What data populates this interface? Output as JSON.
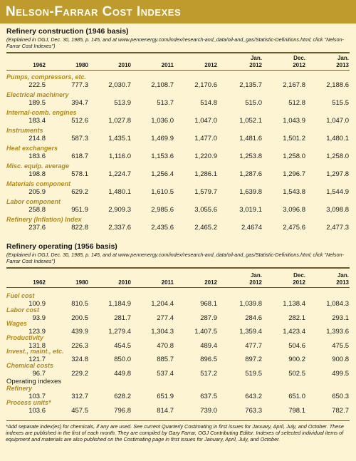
{
  "title": "Nelson-Farrar Cost Indexes",
  "construction": {
    "heading": "Refinery construction (1946 basis)",
    "note": "(Explained in OGJ, Dec. 30, 1985, p. 145, and at www.pennenergy.com/index/research-and_data/oil-and_gas/Statistic-Definitions.html; click \"Nelson-Farrar Cost Indexes\")",
    "columns": [
      {
        "l1": "",
        "l2": "1962"
      },
      {
        "l1": "",
        "l2": "1980"
      },
      {
        "l1": "",
        "l2": "2010"
      },
      {
        "l1": "",
        "l2": "2011"
      },
      {
        "l1": "",
        "l2": "2012"
      },
      {
        "l1": "Jan.",
        "l2": "2012"
      },
      {
        "l1": "Dec.",
        "l2": "2012"
      },
      {
        "l1": "Jan.",
        "l2": "2013"
      }
    ],
    "rows": [
      {
        "label": "Pumps, compressors, etc.",
        "values": [
          "222.5",
          "777.3",
          "2,030.7",
          "2,108.7",
          "2,170.6",
          "2,135.7",
          "2,167.8",
          "2,188.6"
        ]
      },
      {
        "label": "Electrical machinery",
        "values": [
          "189.5",
          "394.7",
          "513.9",
          "513.7",
          "514.8",
          "515.0",
          "512.8",
          "515.5"
        ]
      },
      {
        "label": "Internal-comb. engines",
        "values": [
          "183.4",
          "512.6",
          "1,027.8",
          "1,036.0",
          "1,047.0",
          "1,052.1",
          "1,043.9",
          "1,047.0"
        ]
      },
      {
        "label": "Instruments",
        "values": [
          "214.8",
          "587.3",
          "1,435.1",
          "1,469.9",
          "1,477.0",
          "1,481.6",
          "1,501.2",
          "1,480.1"
        ]
      },
      {
        "label": "Heat exchangers",
        "values": [
          "183.6",
          "618.7",
          "1,116.0",
          "1,153.6",
          "1,220.9",
          "1,253.8",
          "1,258.0",
          "1,258.0"
        ]
      },
      {
        "label": "Misc. equip. average",
        "values": [
          "198.8",
          "578.1",
          "1,224.7",
          "1,256.4",
          "1,286.1",
          "1,287.6",
          "1,296.7",
          "1,297.8"
        ]
      },
      {
        "label": "Materials component",
        "values": [
          "205.9",
          "629.2",
          "1,480.1",
          "1,610.5",
          "1,579.7",
          "1,639.8",
          "1,543.8",
          "1,544.9"
        ]
      },
      {
        "label": "Labor component",
        "values": [
          "258.8",
          "951.9",
          "2,909.3",
          "2,985.6",
          "3,055.6",
          "3,019.1",
          "3,096.8",
          "3,098.8"
        ]
      },
      {
        "label": "Refinery (Inflation) Index",
        "values": [
          "237.6",
          "822.8",
          "2,337.6",
          "2,435.6",
          "2,465.2",
          "2,4674",
          "2,475.6",
          "2,477.3"
        ]
      }
    ]
  },
  "operating": {
    "heading": "Refinery operating (1956 basis)",
    "note": "(Explained in OGJ, Dec. 30, 1985, p. 145, and at www.pennenergy.com/index/research-and_data/oil-and_gas/Statistic-Definitions.html; click \"Nelson-Farrar Cost Indexes\")",
    "columns": [
      {
        "l1": "",
        "l2": "1962"
      },
      {
        "l1": "",
        "l2": "1980"
      },
      {
        "l1": "",
        "l2": "2010"
      },
      {
        "l1": "",
        "l2": "2011"
      },
      {
        "l1": "",
        "l2": "2012"
      },
      {
        "l1": "Jan.",
        "l2": "2012"
      },
      {
        "l1": "Dec.",
        "l2": "2012"
      },
      {
        "l1": "Jan.",
        "l2": "2013"
      }
    ],
    "rows": [
      {
        "label": "Fuel cost",
        "values": [
          "100.9",
          "810.5",
          "1,184.9",
          "1,204.4",
          "968.1",
          "1,039.8",
          "1,138.4",
          "1,084.3"
        ]
      },
      {
        "label": "Labor cost",
        "values": [
          "93.9",
          "200.5",
          "281.7",
          "277.4",
          "287.9",
          "284.6",
          "282.1",
          "293.1"
        ]
      },
      {
        "label": "Wages",
        "values": [
          "123.9",
          "439.9",
          "1,279.4",
          "1,304.3",
          "1,407.5",
          "1,359.4",
          "1,423.4",
          "1,393.6"
        ]
      },
      {
        "label": "Productivity",
        "values": [
          "131.8",
          "226.3",
          "454.5",
          "470.8",
          "489.4",
          "477.7",
          "504.6",
          "475.5"
        ]
      },
      {
        "label": "Invest., maint., etc.",
        "values": [
          "121.7",
          "324.8",
          "850.0",
          "885.7",
          "896.5",
          "897.2",
          "900.2",
          "900.8"
        ]
      },
      {
        "label": "Chemical costs",
        "values": [
          "96.7",
          "229.2",
          "449.8",
          "537.4",
          "517.2",
          "519.5",
          "502.5",
          "499.5"
        ]
      }
    ],
    "indexes_heading": "Operating indexes",
    "index_rows": [
      {
        "label": "Refinery",
        "values": [
          "103.7",
          "312.7",
          "628.2",
          "651.9",
          "637.5",
          "643.2",
          "651.0",
          "650.3"
        ]
      },
      {
        "label": "Process units*",
        "values": [
          "103.6",
          "457.5",
          "796.8",
          "814.7",
          "739.0",
          "763.3",
          "798.1",
          "782.7"
        ]
      }
    ]
  },
  "footnote": "*Add separate index(es) for chemicals, if any are used. See current Quarterly Costimating in first issues for January, April, July, and October. These indexes are published in the first of each month. They are compiled by Gary Farrar, OGJ Contributing Editor. Indexes of selected individual items of equipment and materials are also published on the Costimating page in first issues for January, April, July, and October."
}
